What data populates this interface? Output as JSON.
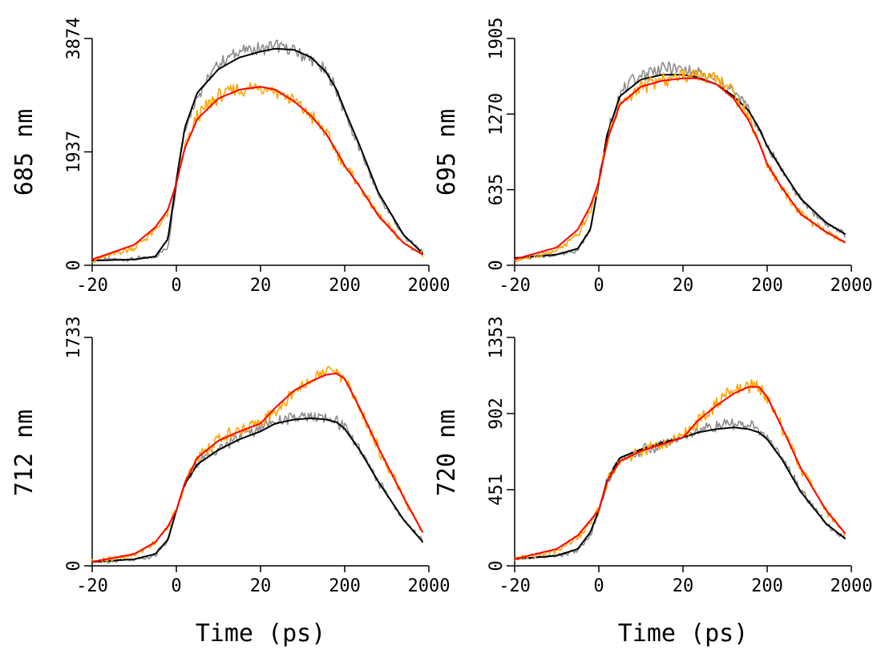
{
  "chart_data": {
    "type": "line",
    "xlabel": "Time (ps)",
    "x_axis_scale": "linear from -20 to 20 ps, logarithmic from 20 to 2000 ps",
    "x_ticks": [
      "-20",
      "0",
      "20",
      "200",
      "2000"
    ],
    "x_tick_values": [
      -20,
      0,
      20,
      200,
      2000
    ],
    "colors": {
      "data_gray": "#8c8c8c",
      "fit_black": "#000000",
      "data_orange": "#ffa500",
      "fit_red": "#ff0000"
    },
    "panels": [
      {
        "label": "685 nm",
        "y_ticks": [
          "0",
          "1937",
          "3874"
        ],
        "ylim": [
          0,
          3874
        ],
        "series": [
          {
            "style": "data_gray",
            "x": [
              -20,
              -10,
              -5,
              -2,
              0,
              2,
              5,
              10,
              15,
              20,
              30,
              50,
              80,
              120,
              160,
              200,
              300,
              500,
              1000,
              1700
            ],
            "values": [
              90,
              110,
              150,
              300,
              1400,
              2350,
              2900,
              3450,
              3650,
              3700,
              3760,
              3650,
              3500,
              3300,
              3000,
              2600,
              2000,
              1200,
              500,
              220
            ]
          },
          {
            "style": "fit_black",
            "x": [
              -20,
              -10,
              -5,
              -2,
              0,
              2,
              5,
              10,
              15,
              20,
              30,
              50,
              80,
              120,
              160,
              200,
              300,
              500,
              1000,
              1700
            ],
            "values": [
              80,
              100,
              150,
              450,
              1450,
              2350,
              2950,
              3350,
              3550,
              3650,
              3700,
              3680,
              3550,
              3300,
              3000,
              2650,
              2050,
              1250,
              520,
              200
            ]
          },
          {
            "style": "data_orange",
            "x": [
              -20,
              -10,
              -5,
              -2,
              0,
              2,
              5,
              10,
              15,
              20,
              30,
              50,
              80,
              120,
              160,
              200,
              300,
              500,
              1000,
              1700
            ],
            "values": [
              80,
              300,
              600,
              900,
              1400,
              2000,
              2550,
              2900,
              3000,
              3050,
              3000,
              2800,
              2550,
              2250,
              1950,
              1700,
              1350,
              850,
              380,
              180
            ]
          },
          {
            "style": "fit_red",
            "x": [
              -20,
              -10,
              -5,
              -2,
              0,
              2,
              5,
              10,
              15,
              20,
              30,
              50,
              80,
              120,
              160,
              200,
              300,
              500,
              1000,
              1700
            ],
            "values": [
              100,
              350,
              650,
              950,
              1400,
              2000,
              2500,
              2850,
              3000,
              3050,
              3000,
              2800,
              2550,
              2250,
              1950,
              1700,
              1350,
              850,
              380,
              180
            ]
          }
        ]
      },
      {
        "label": "695 nm",
        "y_ticks": [
          "0",
          "635",
          "1270",
          "1905"
        ],
        "ylim": [
          0,
          1905
        ],
        "series": [
          {
            "style": "data_gray",
            "x": [
              -20,
              -10,
              -5,
              -2,
              0,
              2,
              5,
              10,
              15,
              20,
              30,
              50,
              80,
              120,
              160,
              200,
              300,
              500,
              1000,
              1700
            ],
            "values": [
              60,
              90,
              130,
              300,
              700,
              1100,
              1450,
              1600,
              1650,
              1650,
              1620,
              1550,
              1450,
              1320,
              1150,
              1000,
              800,
              550,
              350,
              260
            ]
          },
          {
            "style": "fit_black",
            "x": [
              -20,
              -10,
              -5,
              -2,
              0,
              2,
              5,
              10,
              15,
              20,
              30,
              50,
              80,
              120,
              160,
              200,
              300,
              500,
              1000,
              1700
            ],
            "values": [
              60,
              90,
              140,
              300,
              700,
              1100,
              1420,
              1560,
              1600,
              1600,
              1580,
              1520,
              1420,
              1300,
              1150,
              1000,
              800,
              560,
              360,
              260
            ]
          },
          {
            "style": "data_orange",
            "x": [
              -20,
              -10,
              -5,
              -2,
              0,
              2,
              5,
              10,
              15,
              20,
              30,
              50,
              80,
              120,
              160,
              200,
              300,
              500,
              1000,
              1700
            ],
            "values": [
              40,
              120,
              250,
              450,
              700,
              1050,
              1350,
              1500,
              1550,
              1600,
              1620,
              1580,
              1450,
              1250,
              1050,
              850,
              650,
              430,
              280,
              180
            ]
          },
          {
            "style": "fit_red",
            "x": [
              -20,
              -10,
              -5,
              -2,
              0,
              2,
              5,
              10,
              15,
              20,
              30,
              50,
              80,
              120,
              160,
              200,
              300,
              500,
              1000,
              1700
            ],
            "values": [
              50,
              150,
              300,
              500,
              700,
              1050,
              1350,
              1500,
              1550,
              1570,
              1570,
              1520,
              1400,
              1220,
              1030,
              850,
              650,
              430,
              280,
              190
            ]
          }
        ]
      },
      {
        "label": "712 nm",
        "y_ticks": [
          "0",
          "1733"
        ],
        "ylim": [
          0,
          1733
        ],
        "series": [
          {
            "style": "data_gray",
            "x": [
              -20,
              -10,
              -5,
              -2,
              0,
              2,
              5,
              10,
              15,
              20,
              30,
              50,
              80,
              120,
              160,
              200,
              300,
              500,
              1000,
              1700
            ],
            "values": [
              30,
              50,
              80,
              200,
              420,
              620,
              780,
              900,
              980,
              1050,
              1100,
              1120,
              1130,
              1120,
              1100,
              1050,
              880,
              640,
              350,
              180
            ]
          },
          {
            "style": "fit_black",
            "x": [
              -20,
              -10,
              -5,
              -2,
              0,
              2,
              5,
              10,
              15,
              20,
              30,
              50,
              80,
              120,
              160,
              200,
              300,
              500,
              1000,
              1700
            ],
            "values": [
              30,
              50,
              90,
              200,
              420,
              620,
              770,
              880,
              960,
              1020,
              1080,
              1110,
              1120,
              1110,
              1090,
              1040,
              880,
              640,
              350,
              180
            ]
          },
          {
            "style": "data_orange",
            "x": [
              -20,
              -10,
              -5,
              -2,
              0,
              2,
              5,
              10,
              15,
              20,
              30,
              50,
              80,
              120,
              160,
              200,
              300,
              500,
              1000,
              1700
            ],
            "values": [
              30,
              80,
              180,
              300,
              420,
              620,
              820,
              960,
              1030,
              1080,
              1180,
              1330,
              1420,
              1480,
              1480,
              1420,
              1200,
              900,
              520,
              250
            ]
          },
          {
            "style": "fit_red",
            "x": [
              -20,
              -10,
              -5,
              -2,
              0,
              2,
              5,
              10,
              15,
              20,
              30,
              50,
              80,
              120,
              160,
              200,
              300,
              500,
              1000,
              1700
            ],
            "values": [
              30,
              90,
              180,
              300,
              420,
              630,
              820,
              950,
              1020,
              1080,
              1200,
              1330,
              1400,
              1450,
              1460,
              1420,
              1200,
              900,
              520,
              250
            ]
          }
        ]
      },
      {
        "label": "720 nm",
        "y_ticks": [
          "0",
          "451",
          "902",
          "1353"
        ],
        "ylim": [
          0,
          1353
        ],
        "series": [
          {
            "style": "data_gray",
            "x": [
              -20,
              -10,
              -5,
              -2,
              0,
              2,
              5,
              10,
              15,
              20,
              30,
              50,
              80,
              120,
              160,
              200,
              300,
              500,
              1000,
              1700
            ],
            "values": [
              40,
              60,
              90,
              180,
              320,
              500,
              630,
              680,
              720,
              760,
              800,
              830,
              840,
              830,
              800,
              760,
              640,
              450,
              250,
              160
            ]
          },
          {
            "style": "fit_black",
            "x": [
              -20,
              -10,
              -5,
              -2,
              0,
              2,
              5,
              10,
              15,
              20,
              30,
              50,
              80,
              120,
              160,
              200,
              300,
              500,
              1000,
              1700
            ],
            "values": [
              40,
              60,
              100,
              200,
              330,
              510,
              640,
              690,
              730,
              760,
              790,
              810,
              820,
              810,
              790,
              750,
              630,
              440,
              250,
              160
            ]
          },
          {
            "style": "data_orange",
            "x": [
              -20,
              -10,
              -5,
              -2,
              0,
              2,
              5,
              10,
              15,
              20,
              30,
              50,
              80,
              120,
              160,
              200,
              300,
              500,
              1000,
              1700
            ],
            "values": [
              40,
              90,
              170,
              260,
              330,
              500,
              620,
              680,
              720,
              760,
              860,
              960,
              1030,
              1070,
              1060,
              1000,
              820,
              580,
              330,
              190
            ]
          },
          {
            "style": "fit_red",
            "x": [
              -20,
              -10,
              -5,
              -2,
              0,
              2,
              5,
              10,
              15,
              20,
              30,
              50,
              80,
              120,
              160,
              200,
              300,
              500,
              1000,
              1700
            ],
            "values": [
              40,
              100,
              180,
              270,
              330,
              500,
              620,
              680,
              720,
              760,
              860,
              950,
              1020,
              1060,
              1060,
              1000,
              820,
              580,
              330,
              190
            ]
          }
        ]
      }
    ]
  }
}
